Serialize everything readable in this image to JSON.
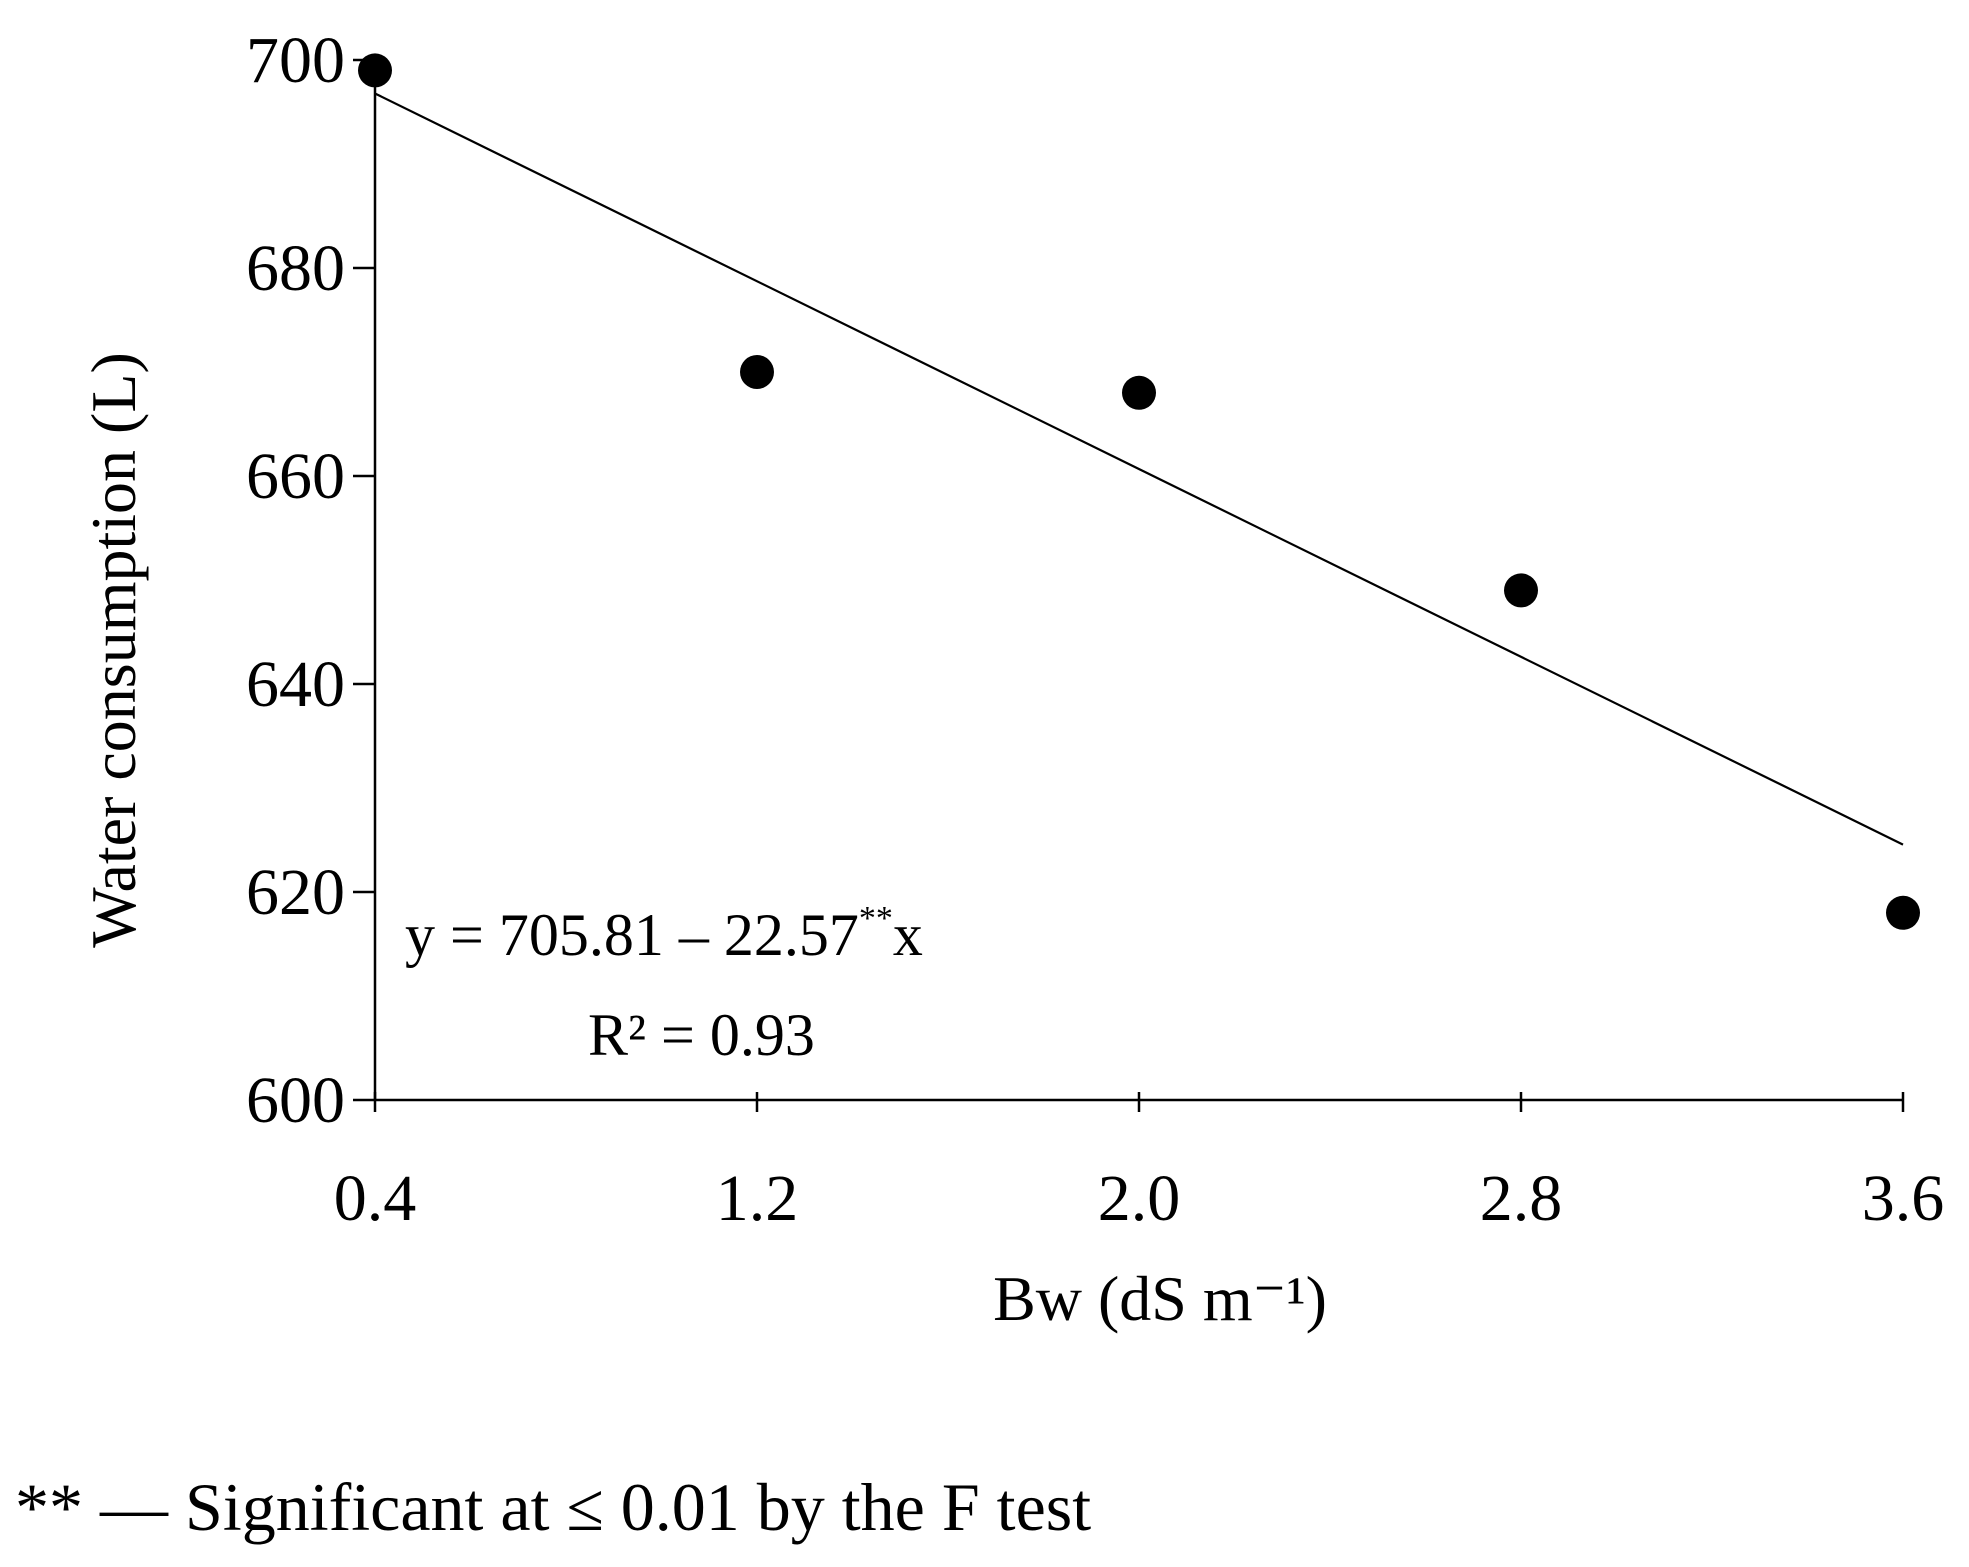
{
  "chart_data": {
    "type": "scatter",
    "title": "",
    "xlabel": "Bw (dS m⁻¹)",
    "ylabel": "Water consumption  (L)",
    "xlim": [
      0.4,
      3.6
    ],
    "ylim": [
      600,
      700
    ],
    "x_ticks": [
      "0.4",
      "1.2",
      "2.0",
      "2.8",
      "3.6"
    ],
    "y_ticks": [
      "600",
      "620",
      "640",
      "660",
      "680",
      "700"
    ],
    "grid": false,
    "series": [
      {
        "points": [
          {
            "x": 0.4,
            "y": 699
          },
          {
            "x": 1.2,
            "y": 670
          },
          {
            "x": 2.0,
            "y": 668
          },
          {
            "x": 2.8,
            "y": 649
          },
          {
            "x": 3.6,
            "y": 618
          }
        ]
      }
    ],
    "trendline": {
      "intercept": 705.81,
      "slope": -22.57,
      "x_range": [
        0.4,
        3.6
      ]
    },
    "annotations": {
      "equation_prefix": "y = 705.81 – 22.57",
      "equation_sup": "**",
      "equation_suffix": "x",
      "r_squared": "R² = 0.93"
    },
    "colors": {
      "marker": "#000000",
      "line": "#000000",
      "axis": "#000000"
    }
  },
  "footnote": "** — Significant at ≤ 0.01 by the F test"
}
